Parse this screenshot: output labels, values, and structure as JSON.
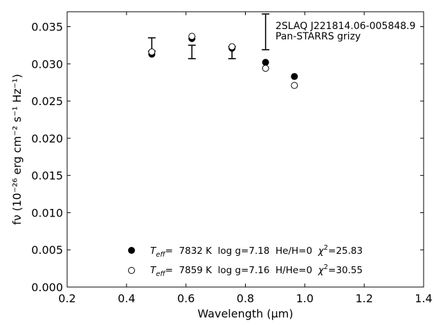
{
  "chart_data": {
    "type": "scatter",
    "xlabel": "Wavelength (μm)",
    "ylabel": "fν (10⁻²⁶ erg cm⁻² s⁻¹ Hz⁻¹)",
    "xlim": [
      0.2,
      1.4
    ],
    "ylim": [
      0.0,
      0.037
    ],
    "x_ticks": [
      0.2,
      0.4,
      0.6,
      0.8,
      1.0,
      1.2,
      1.4
    ],
    "x_tick_labels": [
      "0.2",
      "0.4",
      "0.6",
      "0.8",
      "1.0",
      "1.2",
      "1.4"
    ],
    "y_ticks": [
      0.0,
      0.005,
      0.01,
      0.015,
      0.02,
      0.025,
      0.03,
      0.035
    ],
    "y_tick_labels": [
      "0.000",
      "0.005",
      "0.010",
      "0.015",
      "0.020",
      "0.025",
      "0.030",
      "0.035"
    ],
    "grid": false,
    "annotation": [
      "2SLAQ J221814.06-005848.9",
      "Pan-STARRS grizy"
    ],
    "observed": {
      "x": [
        0.485,
        0.62,
        0.755,
        0.868,
        0.965
      ],
      "y": [
        0.0326,
        0.0316,
        0.0315,
        0.0343,
        null
      ],
      "yerr": [
        0.0009,
        0.0009,
        0.0008,
        0.0024,
        null
      ]
    },
    "series": [
      {
        "marker": "filled-circle",
        "x": [
          0.485,
          0.62,
          0.755,
          0.868,
          0.965
        ],
        "y": [
          0.0313,
          0.0334,
          0.0321,
          0.0302,
          0.0283
        ]
      },
      {
        "marker": "open-circle",
        "x": [
          0.485,
          0.62,
          0.755,
          0.868,
          0.965
        ],
        "y": [
          0.0316,
          0.0337,
          0.0323,
          0.0294,
          0.0271
        ]
      }
    ],
    "legend": {
      "placement": "bottom-center",
      "entries": [
        {
          "marker": "filled-circle",
          "teff_label": "T",
          "teff_sub": "eff",
          "text": "=  7832 K  log g=7.18  He/H=0  ",
          "chi_label": "χ",
          "chi_sup": "2",
          "chi_value": "=25.83"
        },
        {
          "marker": "open-circle",
          "teff_label": "T",
          "teff_sub": "eff",
          "text": "=  7859 K  log g=7.16  H/He=0  ",
          "chi_label": "χ",
          "chi_sup": "2",
          "chi_value": "=30.55"
        }
      ]
    }
  }
}
